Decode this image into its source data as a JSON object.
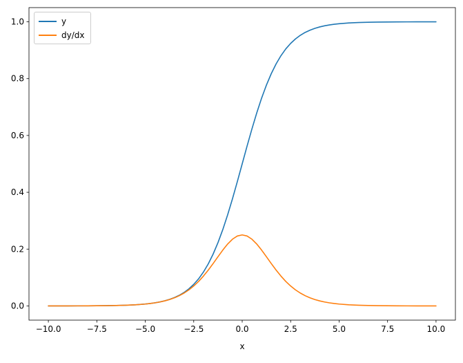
{
  "figure": {
    "background": "#ffffff",
    "text_color": "#000000",
    "spine_color": "#000000"
  },
  "chart_data": {
    "type": "line",
    "title": "",
    "xlabel": "x",
    "ylabel": "",
    "xlim": [
      -11,
      11
    ],
    "ylim": [
      -0.05,
      1.05
    ],
    "grid": false,
    "xticks": {
      "values": [
        -10,
        -7.5,
        -5,
        -2.5,
        0,
        2.5,
        5,
        7.5,
        10
      ],
      "labels": [
        "−10.0",
        "−7.5",
        "−5.0",
        "−2.5",
        "0.0",
        "2.5",
        "5.0",
        "7.5",
        "10.0"
      ]
    },
    "yticks": {
      "values": [
        0,
        0.2,
        0.4,
        0.6,
        0.8,
        1.0
      ],
      "labels": [
        "0.0",
        "0.2",
        "0.4",
        "0.6",
        "0.8",
        "1.0"
      ]
    },
    "legend": {
      "position": "upper-left",
      "entries": [
        "y",
        "dy/dx"
      ]
    },
    "x": [
      -10,
      -9.5,
      -9,
      -8.5,
      -8,
      -7.5,
      -7,
      -6.5,
      -6,
      -5.5,
      -5,
      -4.75,
      -4.5,
      -4.25,
      -4,
      -3.75,
      -3.5,
      -3.25,
      -3,
      -2.75,
      -2.5,
      -2.25,
      -2,
      -1.75,
      -1.5,
      -1.25,
      -1,
      -0.75,
      -0.5,
      -0.25,
      0,
      0.25,
      0.5,
      0.75,
      1,
      1.25,
      1.5,
      1.75,
      2,
      2.25,
      2.5,
      2.75,
      3,
      3.25,
      3.5,
      3.75,
      4,
      4.25,
      4.5,
      4.75,
      5,
      5.5,
      6,
      6.5,
      7,
      7.5,
      8,
      8.5,
      9,
      9.5,
      10
    ],
    "series": [
      {
        "name": "y",
        "color": "#1f77b4",
        "values": [
          0.0,
          0.0001,
          0.0001,
          0.0002,
          0.0003,
          0.0006,
          0.0009,
          0.0015,
          0.0025,
          0.0041,
          0.0067,
          0.0086,
          0.011,
          0.0141,
          0.018,
          0.023,
          0.0293,
          0.0373,
          0.0474,
          0.0601,
          0.0759,
          0.0953,
          0.1192,
          0.1481,
          0.1824,
          0.2227,
          0.2689,
          0.3208,
          0.3775,
          0.4378,
          0.5,
          0.5622,
          0.6225,
          0.6792,
          0.7311,
          0.7773,
          0.8176,
          0.8519,
          0.8808,
          0.9047,
          0.9241,
          0.9399,
          0.9526,
          0.9627,
          0.9707,
          0.977,
          0.982,
          0.9859,
          0.989,
          0.9914,
          0.9933,
          0.9959,
          0.9975,
          0.9985,
          0.9991,
          0.9994,
          0.9997,
          0.9998,
          0.9999,
          0.9999,
          1.0
        ]
      },
      {
        "name": "dy/dx",
        "color": "#ff7f0e",
        "values": [
          0.0,
          0.0001,
          0.0001,
          0.0002,
          0.0003,
          0.0006,
          0.0009,
          0.0015,
          0.0025,
          0.0041,
          0.0066,
          0.0085,
          0.0109,
          0.0139,
          0.0177,
          0.0225,
          0.0284,
          0.0359,
          0.0452,
          0.0565,
          0.0701,
          0.0862,
          0.105,
          0.1262,
          0.1491,
          0.1731,
          0.1966,
          0.2179,
          0.235,
          0.2461,
          0.25,
          0.2461,
          0.235,
          0.2179,
          0.1966,
          0.1731,
          0.1491,
          0.1262,
          0.105,
          0.0862,
          0.0701,
          0.0565,
          0.0452,
          0.0359,
          0.0284,
          0.0225,
          0.0177,
          0.0139,
          0.0109,
          0.0085,
          0.0066,
          0.0041,
          0.0025,
          0.0015,
          0.0009,
          0.0006,
          0.0003,
          0.0002,
          0.0001,
          0.0001,
          0.0
        ]
      }
    ]
  }
}
